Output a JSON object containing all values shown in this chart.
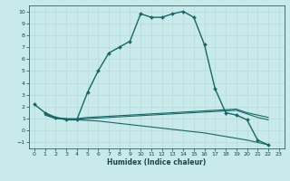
{
  "xlabel": "Humidex (Indice chaleur)",
  "bg_color": "#c8eaea",
  "grid_color": "#b8dada",
  "line_color": "#1a6666",
  "xlim": [
    -0.5,
    23.5
  ],
  "ylim": [
    -1.5,
    10.5
  ],
  "xticks": [
    0,
    1,
    2,
    3,
    4,
    5,
    6,
    7,
    8,
    9,
    10,
    11,
    12,
    13,
    14,
    15,
    16,
    17,
    18,
    19,
    20,
    21,
    22,
    23
  ],
  "yticks": [
    -1,
    0,
    1,
    2,
    3,
    4,
    5,
    6,
    7,
    8,
    9,
    10
  ],
  "series": [
    {
      "x": [
        0,
        1,
        2,
        3,
        4,
        5,
        6,
        7,
        8,
        9,
        10,
        11,
        12,
        13,
        14,
        15,
        16,
        17,
        18,
        19,
        20,
        21,
        22
      ],
      "y": [
        2.2,
        1.5,
        1.1,
        0.9,
        0.9,
        3.2,
        5.0,
        6.5,
        7.0,
        7.5,
        9.8,
        9.5,
        9.5,
        9.8,
        10.0,
        9.5,
        7.2,
        3.5,
        1.5,
        1.3,
        0.9,
        -0.8,
        -1.2
      ],
      "marker": "D",
      "markersize": 2.0,
      "linewidth": 1.0
    },
    {
      "x": [
        1,
        2,
        3,
        4,
        5,
        6,
        7,
        8,
        9,
        10,
        11,
        12,
        13,
        14,
        15,
        16,
        17,
        18,
        19,
        20,
        21,
        22
      ],
      "y": [
        1.4,
        1.1,
        1.0,
        1.0,
        1.1,
        1.15,
        1.2,
        1.25,
        1.3,
        1.35,
        1.4,
        1.45,
        1.5,
        1.55,
        1.6,
        1.65,
        1.7,
        1.75,
        1.8,
        1.5,
        1.3,
        1.1
      ],
      "marker": null,
      "markersize": 0,
      "linewidth": 0.8
    },
    {
      "x": [
        1,
        2,
        3,
        4,
        5,
        6,
        7,
        8,
        9,
        10,
        11,
        12,
        13,
        14,
        15,
        16,
        17,
        18,
        19,
        20,
        21,
        22
      ],
      "y": [
        1.3,
        1.0,
        0.95,
        0.9,
        0.85,
        0.8,
        0.7,
        0.6,
        0.5,
        0.4,
        0.3,
        0.2,
        0.1,
        0.0,
        -0.1,
        -0.2,
        -0.35,
        -0.5,
        -0.65,
        -0.8,
        -1.0,
        -1.2
      ],
      "marker": null,
      "markersize": 0,
      "linewidth": 0.8
    },
    {
      "x": [
        1,
        2,
        3,
        4,
        5,
        6,
        7,
        8,
        9,
        10,
        11,
        12,
        13,
        14,
        15,
        16,
        17,
        18,
        19,
        20,
        21,
        22
      ],
      "y": [
        1.35,
        1.05,
        0.98,
        0.95,
        1.0,
        1.05,
        1.1,
        1.15,
        1.2,
        1.25,
        1.3,
        1.35,
        1.4,
        1.45,
        1.5,
        1.55,
        1.6,
        1.65,
        1.7,
        1.4,
        1.1,
        0.9
      ],
      "marker": null,
      "markersize": 0,
      "linewidth": 0.8
    }
  ]
}
